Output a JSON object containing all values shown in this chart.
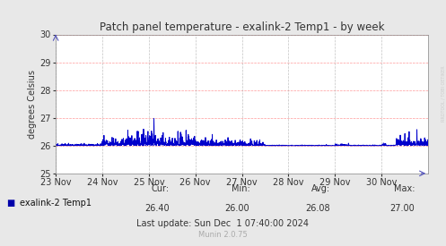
{
  "title": "Patch panel temperature - exalink-2 Temp1 - by week",
  "ylabel": "degrees Celsius",
  "ylim": [
    25,
    30
  ],
  "yticks": [
    25,
    26,
    27,
    28,
    29,
    30
  ],
  "x_tick_labels": [
    "23 Nov",
    "24 Nov",
    "25 Nov",
    "26 Nov",
    "27 Nov",
    "28 Nov",
    "29 Nov",
    "30 Nov"
  ],
  "line_color": "#0000cc",
  "bg_color": "#e8e8e8",
  "plot_bg_color": "#ffffff",
  "grid_color_h": "#ff8080",
  "grid_color_v": "#aaaaaa",
  "legend_label": "exalink-2 Temp1",
  "legend_color": "#0000aa",
  "cur_val": "26.40",
  "min_val": "26.00",
  "avg_val": "26.08",
  "max_val": "27.00",
  "last_update": "Last update: Sun Dec  1 07:40:00 2024",
  "munin_version": "Munin 2.0.75",
  "watermark": "RRDTOOL / TOBI OETIKER",
  "base_temp": 26.0,
  "num_points": 2016
}
